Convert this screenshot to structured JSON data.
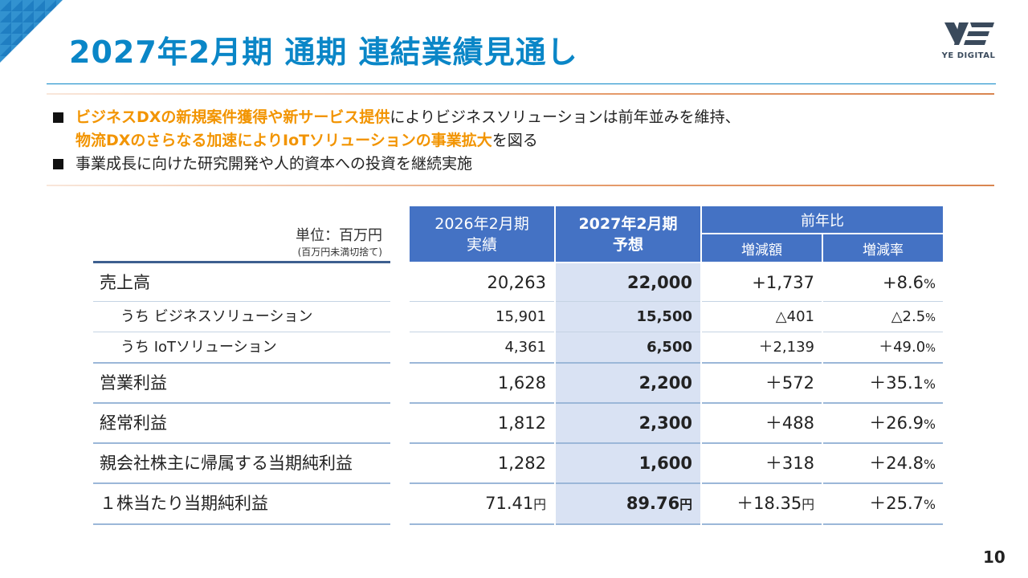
{
  "header": {
    "title": "2027年2月期 通期 連結業績見通し",
    "logo_text": "YE DIGITAL"
  },
  "bullets": [
    {
      "parts": [
        {
          "text": "ビジネスDXの新規案件獲得や新サービス提供",
          "highlight": true
        },
        {
          "text": "によりビジネスソリューションは前年並みを維持、",
          "highlight": false
        }
      ]
    },
    {
      "parts": [
        {
          "text": "物流DXのさらなる加速によりIoTソリューションの事業拡大",
          "highlight": true
        },
        {
          "text": "を図る",
          "highlight": false
        }
      ],
      "continuation": true
    },
    {
      "parts": [
        {
          "text": "事業成長に向けた研究開発や人的資本への投資を継続実施",
          "highlight": false
        }
      ]
    }
  ],
  "table": {
    "unit": "単位：百万円",
    "unit_note": "(百万円未満切捨て)",
    "columns": {
      "actual_line1": "2026年2月期",
      "actual_line2": "実績",
      "forecast_line1": "2027年2月期",
      "forecast_line2": "予想",
      "yoy": "前年比",
      "change": "増減額",
      "rate": "増減率"
    },
    "rows": [
      {
        "label": "売上高",
        "actual": "20,263",
        "forecast": "22,000",
        "change": "+1,737",
        "rate": "+8.6",
        "rate_unit": "%"
      },
      {
        "label": "うち ビジネスソリューション",
        "actual": "15,901",
        "forecast": "15,500",
        "change": "△401",
        "rate": "△2.5",
        "rate_unit": "%"
      },
      {
        "label": "うち IoTソリューション",
        "actual": "4,361",
        "forecast": "6,500",
        "change": "＋2,139",
        "rate": "＋49.0",
        "rate_unit": "%"
      },
      {
        "label": "営業利益",
        "actual": "1,628",
        "forecast": "2,200",
        "change": "＋572",
        "rate": "＋35.1",
        "rate_unit": "%"
      },
      {
        "label": "経常利益",
        "actual": "1,812",
        "forecast": "2,300",
        "change": "＋488",
        "rate": "＋26.9",
        "rate_unit": "%"
      },
      {
        "label": "親会社株主に帰属する当期純利益",
        "actual": "1,282",
        "forecast": "1,600",
        "change": "＋318",
        "rate": "＋24.8",
        "rate_unit": "%"
      },
      {
        "label": "１株当たり当期純利益",
        "actual": "71.41",
        "actual_unit": "円",
        "forecast": "89.76",
        "forecast_unit": "円",
        "change": "＋18.35",
        "change_unit": "円",
        "rate": "＋25.7",
        "rate_unit": "%"
      }
    ]
  },
  "footer": {
    "page_number": "10"
  },
  "colors": {
    "title": "#0a86c7",
    "highlight": "#f29400",
    "header_bg": "#4472c4",
    "forecast_bg": "#d9e2f3"
  }
}
